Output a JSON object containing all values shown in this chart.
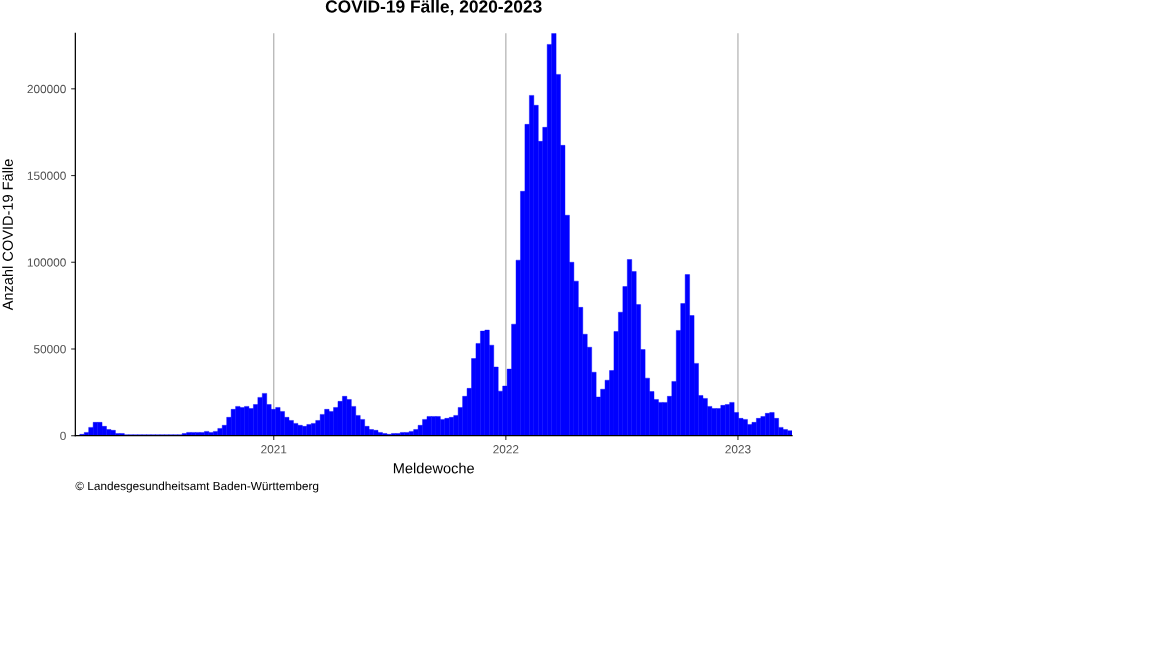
{
  "chart_data": {
    "type": "bar",
    "title": "COVID-19 Fälle, 2020-2023",
    "xlabel": "Meldewoche",
    "ylabel": "Anzahl COVID-19 Fälle",
    "annotations": [
      "© Landesgesundheitsamt Baden-Württemberg"
    ],
    "x": [
      "2020-03-02",
      "2020-03-09",
      "2020-03-16",
      "2020-03-23",
      "2020-03-30",
      "2020-04-06",
      "2020-04-13",
      "2020-04-20",
      "2020-04-27",
      "2020-05-04",
      "2020-05-11",
      "2020-05-18",
      "2020-05-25",
      "2020-06-01",
      "2020-06-08",
      "2020-06-15",
      "2020-06-22",
      "2020-06-29",
      "2020-07-06",
      "2020-07-13",
      "2020-07-20",
      "2020-07-27",
      "2020-08-03",
      "2020-08-10",
      "2020-08-17",
      "2020-08-24",
      "2020-08-31",
      "2020-09-07",
      "2020-09-14",
      "2020-09-21",
      "2020-09-28",
      "2020-10-05",
      "2020-10-12",
      "2020-10-19",
      "2020-10-26",
      "2020-11-02",
      "2020-11-09",
      "2020-11-16",
      "2020-11-23",
      "2020-11-30",
      "2020-12-07",
      "2020-12-14",
      "2020-12-21",
      "2020-12-28",
      "2021-01-04",
      "2021-01-11",
      "2021-01-18",
      "2021-01-25",
      "2021-02-01",
      "2021-02-08",
      "2021-02-15",
      "2021-02-22",
      "2021-03-01",
      "2021-03-08",
      "2021-03-15",
      "2021-03-22",
      "2021-03-29",
      "2021-04-05",
      "2021-04-12",
      "2021-04-19",
      "2021-04-26",
      "2021-05-03",
      "2021-05-10",
      "2021-05-17",
      "2021-05-24",
      "2021-05-31",
      "2021-06-07",
      "2021-06-14",
      "2021-06-21",
      "2021-06-28",
      "2021-07-05",
      "2021-07-12",
      "2021-07-19",
      "2021-07-26",
      "2021-08-02",
      "2021-08-09",
      "2021-08-16",
      "2021-08-23",
      "2021-08-30",
      "2021-09-06",
      "2021-09-13",
      "2021-09-20",
      "2021-09-27",
      "2021-10-04",
      "2021-10-11",
      "2021-10-18",
      "2021-10-25",
      "2021-11-01",
      "2021-11-08",
      "2021-11-15",
      "2021-11-22",
      "2021-11-29",
      "2021-12-06",
      "2021-12-13",
      "2021-12-20",
      "2021-12-27",
      "2022-01-03",
      "2022-01-10",
      "2022-01-17",
      "2022-01-24",
      "2022-01-31",
      "2022-02-07",
      "2022-02-14",
      "2022-02-21",
      "2022-02-28",
      "2022-03-07",
      "2022-03-14",
      "2022-03-21",
      "2022-03-28",
      "2022-04-04",
      "2022-04-11",
      "2022-04-18",
      "2022-04-25",
      "2022-05-02",
      "2022-05-09",
      "2022-05-16",
      "2022-05-23",
      "2022-05-30",
      "2022-06-06",
      "2022-06-13",
      "2022-06-20",
      "2022-06-27",
      "2022-07-04",
      "2022-07-11",
      "2022-07-18",
      "2022-07-25",
      "2022-08-01",
      "2022-08-08",
      "2022-08-15",
      "2022-08-22",
      "2022-08-29",
      "2022-09-05",
      "2022-09-12",
      "2022-09-19",
      "2022-09-26",
      "2022-10-03",
      "2022-10-10",
      "2022-10-17",
      "2022-10-24",
      "2022-10-31",
      "2022-11-07",
      "2022-11-14",
      "2022-11-21",
      "2022-11-28",
      "2022-12-05",
      "2022-12-12",
      "2022-12-19",
      "2022-12-26",
      "2023-01-02",
      "2023-01-09",
      "2023-01-16",
      "2023-01-23",
      "2023-01-30",
      "2023-02-06",
      "2023-02-13",
      "2023-02-20",
      "2023-02-27",
      "2023-03-06",
      "2023-03-13",
      "2023-03-20"
    ],
    "values": [
      800,
      1900,
      4800,
      7700,
      7700,
      5400,
      3600,
      3100,
      1300,
      1300,
      600,
      600,
      600,
      600,
      600,
      600,
      600,
      600,
      600,
      600,
      600,
      600,
      600,
      1300,
      1900,
      1900,
      1900,
      1900,
      2500,
      1900,
      2500,
      4200,
      6000,
      10600,
      15200,
      16900,
      16300,
      16900,
      15700,
      18000,
      22100,
      24400,
      18000,
      15200,
      16300,
      14000,
      10600,
      8800,
      7100,
      6000,
      5400,
      6500,
      7100,
      8800,
      12300,
      15200,
      14000,
      16300,
      19800,
      22700,
      20900,
      16900,
      11700,
      9400,
      5400,
      3600,
      3100,
      1900,
      1300,
      800,
      1300,
      1300,
      1900,
      1900,
      2500,
      3600,
      6000,
      9400,
      11100,
      11100,
      11100,
      9400,
      10000,
      10600,
      11700,
      16300,
      22700,
      27300,
      44500,
      53200,
      60300,
      60900,
      52200,
      39600,
      25700,
      28600,
      38400,
      64300,
      101200,
      140900,
      179500,
      196200,
      190500,
      169700,
      177800,
      225600,
      232000,
      208300,
      167400,
      127100,
      100000,
      89100,
      74000,
      58500,
      51000,
      36600,
      22300,
      26800,
      32000,
      37600,
      60100,
      71200,
      86000,
      101600,
      94700,
      75600,
      49700,
      33200,
      25500,
      20900,
      19200,
      19200,
      22700,
      31300,
      60700,
      76200,
      92900,
      69300,
      41700,
      23200,
      21500,
      16900,
      15700,
      15700,
      17500,
      18000,
      19200,
      13400,
      10000,
      9400,
      6500,
      7700,
      10000,
      11100,
      12900,
      13400,
      10000,
      4800,
      3600,
      2900
    ],
    "color": "#0000ff",
    "xlim": [
      "2020-02-24",
      "2023-03-27"
    ],
    "xticks": [
      "2021",
      "2022",
      "2023"
    ],
    "ylim": [
      0,
      232000
    ],
    "yticks": [
      0,
      50000,
      100000,
      150000,
      200000
    ],
    "grid": "x"
  }
}
